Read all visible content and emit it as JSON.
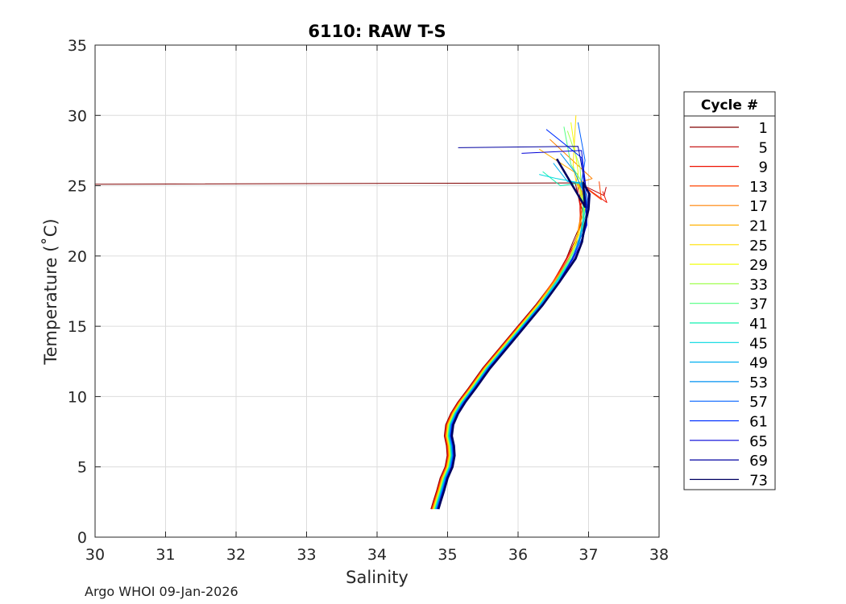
{
  "footer": "Argo WHOI 09-Jan-2026",
  "chart_data": {
    "type": "line",
    "title": "6110: RAW T-S",
    "xlabel": "Salinity",
    "ylabel": "Temperature (˚C)",
    "xlim": [
      30,
      38
    ],
    "ylim": [
      0,
      35
    ],
    "xticks": [
      30,
      31,
      32,
      33,
      34,
      35,
      36,
      37,
      38
    ],
    "yticks": [
      0,
      5,
      10,
      15,
      20,
      25,
      30,
      35
    ],
    "grid": true,
    "legend": {
      "title": "Cycle #",
      "position": "right-outside"
    },
    "base_profile": {
      "salinity": [
        34.82,
        34.85,
        34.9,
        34.95,
        35.02,
        35.05,
        35.04,
        35.01,
        35.03,
        35.1,
        35.2,
        35.35,
        35.55,
        35.8,
        36.05,
        36.3,
        36.55,
        36.75,
        36.85,
        36.92,
        36.95,
        36.93,
        36.88
      ],
      "temperature": [
        2.0,
        2.5,
        3.3,
        4.2,
        5.0,
        5.8,
        6.5,
        7.2,
        8.0,
        8.8,
        9.6,
        10.6,
        12.0,
        13.5,
        15.0,
        16.5,
        18.2,
        19.8,
        21.0,
        22.2,
        23.3,
        24.4,
        25.2
      ]
    },
    "series": [
      {
        "name": "1",
        "color": "#800000",
        "surface_salinity": [
          36.8,
          30.0
        ],
        "surface_temperature": [
          25.2,
          25.1
        ]
      },
      {
        "name": "5",
        "color": "#c00000",
        "surface_salinity": [
          37.22,
          37.25
        ],
        "surface_temperature": [
          24.3,
          24.9
        ]
      },
      {
        "name": "9",
        "color": "#ee1100",
        "surface_salinity": [
          37.26,
          37.2
        ],
        "surface_temperature": [
          23.8,
          24.6
        ]
      },
      {
        "name": "13",
        "color": "#ff4400",
        "surface_salinity": [
          37.18,
          37.15
        ],
        "surface_temperature": [
          24.0,
          25.3
        ]
      },
      {
        "name": "17",
        "color": "#ff8000",
        "surface_salinity": [
          37.05,
          36.45
        ],
        "surface_temperature": [
          25.5,
          28.3
        ]
      },
      {
        "name": "21",
        "color": "#ffb000",
        "surface_salinity": [
          36.85,
          36.3
        ],
        "surface_temperature": [
          25.8,
          27.6
        ]
      },
      {
        "name": "25",
        "color": "#ffe000",
        "surface_salinity": [
          36.78,
          36.82
        ],
        "surface_temperature": [
          26.5,
          30.0
        ]
      },
      {
        "name": "29",
        "color": "#f0ff10",
        "surface_salinity": [
          36.85,
          36.75
        ],
        "surface_temperature": [
          26.0,
          29.5
        ]
      },
      {
        "name": "33",
        "color": "#a0ff50",
        "surface_salinity": [
          36.88,
          36.7
        ],
        "surface_temperature": [
          26.3,
          28.9
        ]
      },
      {
        "name": "37",
        "color": "#50ff80",
        "surface_salinity": [
          36.75,
          36.65
        ],
        "surface_temperature": [
          26.5,
          29.2
        ]
      },
      {
        "name": "41",
        "color": "#10f0b0",
        "surface_salinity": [
          36.6,
          36.35
        ],
        "surface_temperature": [
          25.0,
          26.0
        ]
      },
      {
        "name": "45",
        "color": "#00d8e0",
        "surface_salinity": [
          36.55,
          36.3
        ],
        "surface_temperature": [
          25.5,
          25.8
        ]
      },
      {
        "name": "49",
        "color": "#00b0f0",
        "surface_salinity": [
          36.7,
          36.5
        ],
        "surface_temperature": [
          25.3,
          26.6
        ]
      },
      {
        "name": "53",
        "color": "#0090f0",
        "surface_salinity": [
          36.8,
          36.6
        ],
        "surface_temperature": [
          26.0,
          27.3
        ]
      },
      {
        "name": "57",
        "color": "#0060ff",
        "surface_salinity": [
          36.95,
          36.85
        ],
        "surface_temperature": [
          26.8,
          29.5
        ]
      },
      {
        "name": "61",
        "color": "#0030ff",
        "surface_salinity": [
          36.9,
          36.4
        ],
        "surface_temperature": [
          27.0,
          29.0
        ]
      },
      {
        "name": "65",
        "color": "#0000d8",
        "surface_salinity": [
          36.9,
          36.05
        ],
        "surface_temperature": [
          27.5,
          27.3
        ]
      },
      {
        "name": "69",
        "color": "#0000a0",
        "surface_salinity": [
          36.85,
          35.15
        ],
        "surface_temperature": [
          27.8,
          27.7
        ]
      },
      {
        "name": "73",
        "color": "#000060",
        "surface_salinity": [
          36.95,
          36.55
        ],
        "surface_temperature": [
          23.5,
          26.9
        ]
      }
    ]
  }
}
